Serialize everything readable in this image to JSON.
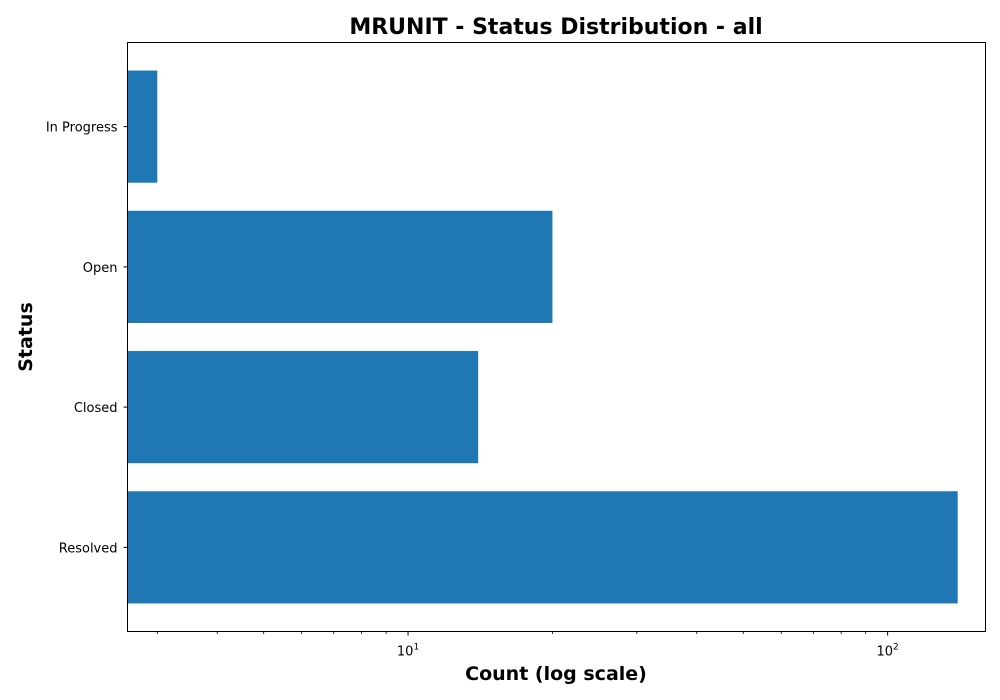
{
  "chart_data": {
    "type": "bar",
    "orientation": "horizontal",
    "title": "MRUNIT - Status Distribution - all",
    "xlabel": "Count (log scale)",
    "ylabel": "Status",
    "x_scale": "log",
    "xlim": [
      2.6,
      160
    ],
    "categories": [
      "Resolved",
      "Closed",
      "Open",
      "In Progress"
    ],
    "values": [
      140,
      14,
      20,
      3
    ],
    "x_ticks": [
      {
        "value": 10,
        "base": "10",
        "exp": "1"
      },
      {
        "value": 100,
        "base": "10",
        "exp": "2"
      }
    ],
    "bar_color": "#1f77b4",
    "grid": false,
    "legend": "none"
  }
}
